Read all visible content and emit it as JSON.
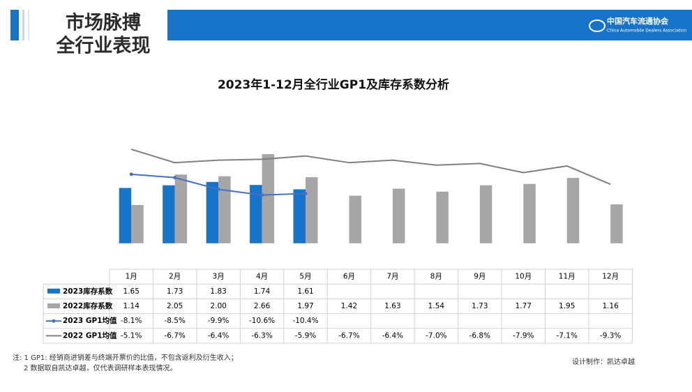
{
  "header": {
    "title_line1": "市场脉搏",
    "title_line2": "全行业表现",
    "logo_cn": "中国汽车流通协会",
    "logo_en": "China Automobile Dealers Association"
  },
  "chart_data": {
    "type": "bar_line_table",
    "title": "2023年1-12月全行业GP1及库存系数分析",
    "categories": [
      "1月",
      "2月",
      "3月",
      "4月",
      "5月",
      "6月",
      "7月",
      "8月",
      "9月",
      "10月",
      "11月",
      "12月"
    ],
    "ylim": [
      -0.4,
      3.2
    ],
    "y2lim": [
      -18,
      -3.5
    ],
    "series": [
      {
        "name": "2023库存系数",
        "type": "bar",
        "color": "#1874c8",
        "values": [
          1.65,
          1.73,
          1.83,
          1.74,
          1.61,
          null,
          null,
          null,
          null,
          null,
          null,
          null
        ],
        "value_labels": [
          "1.65",
          "1.73",
          "1.83",
          "1.74",
          "1.61",
          null,
          null,
          null,
          null,
          null,
          null,
          null
        ]
      },
      {
        "name": "2022库存系数",
        "type": "bar",
        "color": "#a6a6a6",
        "values": [
          1.14,
          2.05,
          2.0,
          2.66,
          1.97,
          1.42,
          1.63,
          1.54,
          1.73,
          1.77,
          1.95,
          1.16
        ],
        "value_labels": [
          "1.14",
          "2.05",
          "2.00",
          "2.66",
          "1.97",
          "1.42",
          "1.63",
          "1.54",
          "1.73",
          "1.77",
          "1.95",
          "1.16"
        ]
      },
      {
        "name": "2023 GP1均值",
        "type": "line",
        "axis": "y2",
        "marker": true,
        "color": "#4472c4",
        "values": [
          -8.1,
          -8.5,
          -9.9,
          -10.6,
          -10.4,
          null,
          null,
          null,
          null,
          null,
          null,
          null
        ],
        "value_labels": [
          "-8.1%",
          "-8.5%",
          "-9.9%",
          "-10.6%",
          "-10.4%",
          null,
          null,
          null,
          null,
          null,
          null,
          null
        ]
      },
      {
        "name": "2022 GP1均值",
        "type": "line",
        "axis": "y2",
        "marker": false,
        "color": "#7f7f7f",
        "values": [
          -5.1,
          -6.7,
          -6.4,
          -6.3,
          -5.9,
          -6.7,
          -6.4,
          -7.0,
          -6.8,
          -7.9,
          -7.1,
          -9.3
        ],
        "value_labels": [
          "-5.1%",
          "-6.7%",
          "-6.4%",
          "-6.3%",
          "-5.9%",
          "-6.7%",
          "-6.4%",
          "-7.0%",
          "-6.8%",
          "-7.9%",
          "-7.1%",
          "-9.3%"
        ]
      }
    ]
  },
  "footer": {
    "note1": "注: 1  GP1: 经销商进销差与终端开票价的比值，不包含返利及衍生收入；",
    "note2": "2 数据取自凯达卓越，仅代表调研样本表现情况。",
    "credit": "设计制作：凯达卓越"
  }
}
